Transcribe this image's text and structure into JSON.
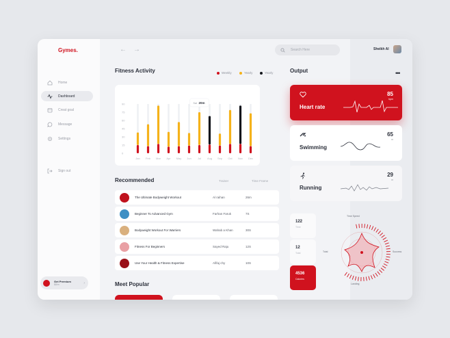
{
  "app": {
    "logo": "Gymes."
  },
  "sidebar": {
    "items": [
      {
        "label": "Home",
        "icon": "home-icon"
      },
      {
        "label": "Dashboard",
        "icon": "activity-icon"
      },
      {
        "label": "Creat goal",
        "icon": "calendar-icon"
      },
      {
        "label": "Message",
        "icon": "chat-icon"
      },
      {
        "label": "Settings",
        "icon": "gear-icon"
      },
      {
        "label": "Sign out",
        "icon": "sign-out-icon"
      }
    ],
    "premium": {
      "title": "Get Premium",
      "subtitle": "$8/m",
      "arrow": "›"
    }
  },
  "topbar": {
    "back": "←",
    "forward": "→",
    "search_placeholder": "Search Here",
    "username": "Sheikh Al"
  },
  "activity": {
    "title": "Fitness Activity",
    "legend": [
      {
        "label": "Weekly",
        "color": "#d0121e"
      },
      {
        "label": "Yearly",
        "color": "#f5b21a"
      },
      {
        "label": "Yearly",
        "color": "#14161c"
      }
    ],
    "tooltip": {
      "label": "Sat",
      "value": "20m"
    }
  },
  "chart_data": {
    "type": "bar",
    "categories": [
      "Jan",
      "Feb",
      "Mar",
      "Apr",
      "May",
      "Jun",
      "Jul",
      "Aug",
      "Sep",
      "Oct",
      "Nov",
      "Dec"
    ],
    "yticks": [
      "0",
      "15",
      "30",
      "45",
      "60",
      "75",
      "90"
    ],
    "ylim": [
      0,
      90
    ],
    "series": [
      {
        "name": "Weekly",
        "color": "#d0121e",
        "values": [
          15,
          13,
          17,
          12,
          13,
          14,
          15,
          16,
          14,
          17,
          17,
          13
        ]
      },
      {
        "name": "Yearly",
        "color": "#f5b21a",
        "values": [
          23,
          40,
          70,
          27,
          44,
          23,
          60,
          0,
          22,
          62,
          0,
          60
        ]
      },
      {
        "name": "Yearly",
        "color": "#14161c",
        "values": [
          0,
          0,
          0,
          0,
          0,
          0,
          0,
          52,
          0,
          0,
          70,
          0
        ]
      }
    ],
    "highlight_index": 6
  },
  "recommended": {
    "title": "Recommended",
    "col_trainer": "Trainer",
    "col_time": "Time Frame",
    "rows": [
      {
        "name": "The Ultimate Bodyweight Workout",
        "trainer": "Al raihan",
        "time": "26m",
        "thumb": "#c0121d"
      },
      {
        "name": "Beginner To Advanced Gym",
        "trainer": "Farhan Faruk",
        "time": "7S",
        "thumb": "#3e8fc4"
      },
      {
        "name": "Bodyweight Workout For Warriers",
        "trainer": "Wahab a Khan",
        "time": "30S",
        "thumb": "#d9b07e"
      },
      {
        "name": "Fitness For Beginners",
        "trainer": "Sayed Raju",
        "time": "12S",
        "thumb": "#e9a0a4"
      },
      {
        "name": "Use Your Health & Fitness Expertise",
        "trainer": "Afifaj chy",
        "time": "10S",
        "thumb": "#9a1018"
      }
    ]
  },
  "popular": {
    "title": "Meet Popular"
  },
  "output": {
    "title": "Output",
    "more": "•••",
    "cards": [
      {
        "label": "Heart rate",
        "value": "85",
        "unit": "bpm"
      },
      {
        "label": "Swimming",
        "value": "65",
        "unit": "m"
      },
      {
        "label": "Running",
        "value": "29",
        "unit": "m"
      }
    ],
    "stats": [
      {
        "value": "122",
        "label": "Time"
      },
      {
        "value": "12",
        "label": "Total"
      },
      {
        "value": "4536",
        "label": "Calories"
      }
    ],
    "radar": {
      "top": "Time Speed",
      "left": "Total",
      "right": "Success",
      "bottom": "Landing"
    }
  }
}
